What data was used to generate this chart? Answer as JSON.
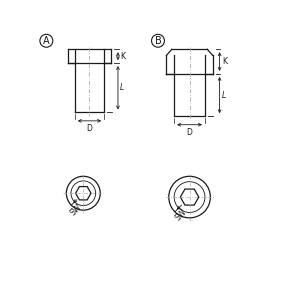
{
  "bg_color": "#ffffff",
  "line_color": "#1a1a1a",
  "dim_color": "#1a1a1a",
  "center_line_color": "#aaaaaa",
  "label_A": "A",
  "label_B": "B",
  "label_K": "K",
  "label_L": "L",
  "label_D": "D",
  "label_SW": "SW",
  "figsize": [
    2.91,
    2.82
  ],
  "dpi": 100
}
